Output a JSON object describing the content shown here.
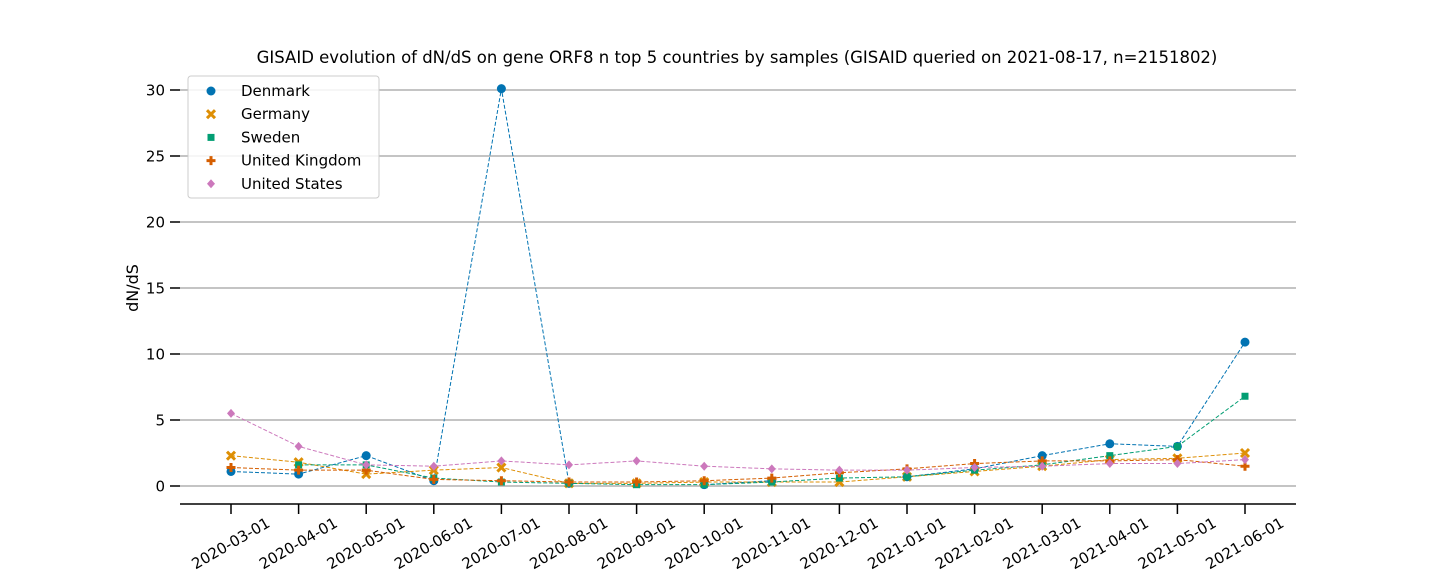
{
  "chart_data": {
    "type": "line",
    "title": "GISAID evolution of dN/dS on gene ORF8 n top 5 countries by samples (GISAID queried on 2021-08-17, n=2151802)",
    "xlabel": "",
    "ylabel": "dN/dS",
    "ylim": [
      -1.3,
      31.5
    ],
    "yticks": [
      0,
      5,
      10,
      15,
      20,
      25,
      30
    ],
    "grid": "horizontal",
    "legend_position": "top-left",
    "categories": [
      "2020-03-01",
      "2020-04-01",
      "2020-05-01",
      "2020-06-01",
      "2020-07-01",
      "2020-08-01",
      "2020-09-01",
      "2020-10-01",
      "2020-11-01",
      "2020-12-01",
      "2021-01-01",
      "2021-02-01",
      "2021-03-01",
      "2021-04-01",
      "2021-05-01",
      "2021-06-01"
    ],
    "series": [
      {
        "name": "Denmark",
        "color": "#0173b2",
        "marker": "circle",
        "values": [
          1.1,
          0.9,
          2.3,
          0.4,
          30.1,
          0.2,
          null,
          0.1,
          0.4,
          null,
          0.7,
          1.3,
          2.3,
          3.2,
          3.0,
          10.9
        ]
      },
      {
        "name": "Germany",
        "color": "#de8f05",
        "marker": "x",
        "values": [
          2.3,
          1.8,
          0.9,
          1.2,
          1.4,
          0.2,
          0.2,
          0.3,
          0.3,
          0.3,
          0.7,
          1.1,
          1.5,
          2.0,
          2.1,
          2.5
        ]
      },
      {
        "name": "Sweden",
        "color": "#029e73",
        "marker": "square",
        "values": [
          null,
          1.6,
          1.6,
          0.6,
          0.3,
          0.2,
          0.1,
          0.1,
          0.3,
          0.6,
          0.7,
          1.2,
          1.6,
          2.3,
          3.0,
          6.8
        ]
      },
      {
        "name": "United Kingdom",
        "color": "#d55e00",
        "marker": "plus",
        "values": [
          1.4,
          1.2,
          1.2,
          0.5,
          0.4,
          0.3,
          0.3,
          0.4,
          0.6,
          1.0,
          1.3,
          1.7,
          1.9,
          1.9,
          2.0,
          1.5
        ]
      },
      {
        "name": "United States",
        "color": "#cc78bc",
        "marker": "diamond",
        "values": [
          5.5,
          3.0,
          1.6,
          1.5,
          1.9,
          1.6,
          1.9,
          1.5,
          1.3,
          1.2,
          1.2,
          1.4,
          1.5,
          1.7,
          1.7,
          2.0
        ]
      }
    ]
  }
}
